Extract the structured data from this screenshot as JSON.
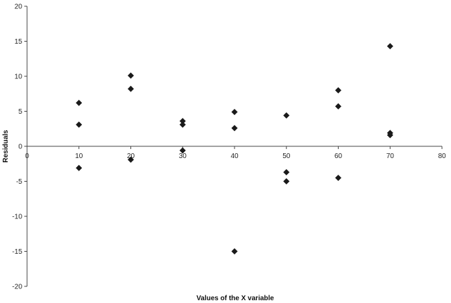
{
  "chart_data": {
    "type": "scatter",
    "title": "",
    "xlabel": "Values of the X variable",
    "ylabel": "Residuals",
    "xlim": [
      0,
      80
    ],
    "ylim": [
      -20,
      20
    ],
    "xticks": [
      0,
      10,
      20,
      30,
      40,
      50,
      60,
      70,
      80
    ],
    "yticks": [
      -20,
      -15,
      -10,
      -5,
      0,
      5,
      10,
      15,
      20
    ],
    "grid": false,
    "legend": "none",
    "marker": "diamond",
    "marker_color": "#1a1a1a",
    "points": [
      {
        "x": 10,
        "y": 6.2
      },
      {
        "x": 10,
        "y": 3.1
      },
      {
        "x": 10,
        "y": -3.1
      },
      {
        "x": 20,
        "y": 10.1
      },
      {
        "x": 20,
        "y": 8.2
      },
      {
        "x": 20,
        "y": -1.9
      },
      {
        "x": 30,
        "y": 3.6
      },
      {
        "x": 30,
        "y": 3.1
      },
      {
        "x": 30,
        "y": -0.6
      },
      {
        "x": 40,
        "y": 4.9
      },
      {
        "x": 40,
        "y": 2.6
      },
      {
        "x": 40,
        "y": -15.0
      },
      {
        "x": 50,
        "y": 4.4
      },
      {
        "x": 50,
        "y": -3.7
      },
      {
        "x": 50,
        "y": -5.0
      },
      {
        "x": 60,
        "y": 8.0
      },
      {
        "x": 60,
        "y": 5.7
      },
      {
        "x": 60,
        "y": -4.5
      },
      {
        "x": 70,
        "y": 14.3
      },
      {
        "x": 70,
        "y": 1.9
      },
      {
        "x": 70,
        "y": 1.6
      }
    ]
  }
}
